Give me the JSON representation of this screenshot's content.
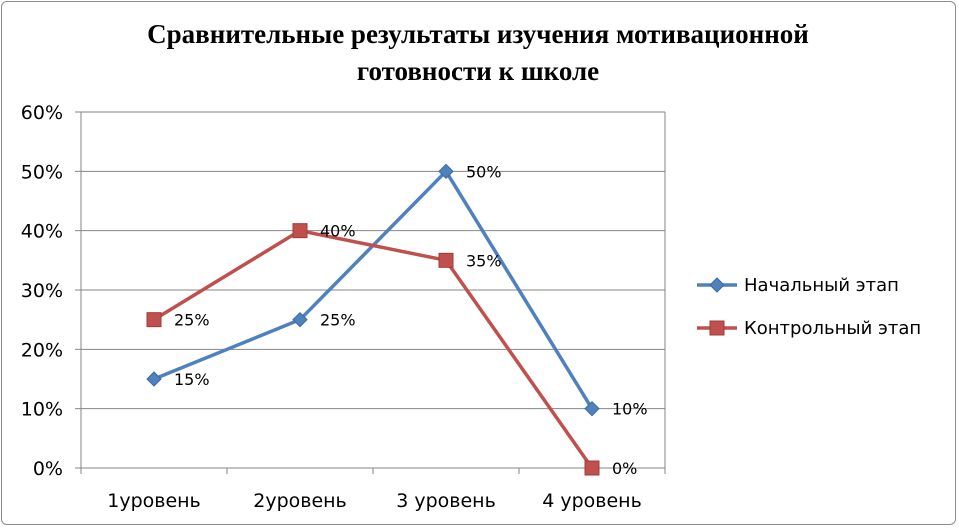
{
  "chart_data": {
    "type": "line",
    "title": "Сравнительные результаты изучения мотивационной готовности к школе",
    "title_lines": [
      "Сравнительные результаты изучения мотивационной",
      "готовности к школе"
    ],
    "xlabel": "",
    "ylabel": "",
    "categories": [
      "1уровень",
      "2уровень",
      "3 уровень",
      "4 уровень"
    ],
    "ylim": [
      0,
      60
    ],
    "y_ticks": [
      0,
      10,
      20,
      30,
      40,
      50,
      60
    ],
    "y_tick_labels": [
      "0%",
      "10%",
      "20%",
      "30%",
      "40%",
      "50%",
      "60%"
    ],
    "grid": true,
    "legend_position": "right",
    "series": [
      {
        "name": "Начальный этап",
        "values": [
          15,
          25,
          50,
          10
        ],
        "labels": [
          "15%",
          "25%",
          "50%",
          "10%"
        ],
        "color": "#4f81bd",
        "marker": "diamond"
      },
      {
        "name": "Контрольный этап",
        "values": [
          25,
          40,
          35,
          0
        ],
        "labels": [
          "25%",
          "40%",
          "35%",
          "0%"
        ],
        "color": "#c0504d",
        "marker": "square"
      }
    ]
  }
}
